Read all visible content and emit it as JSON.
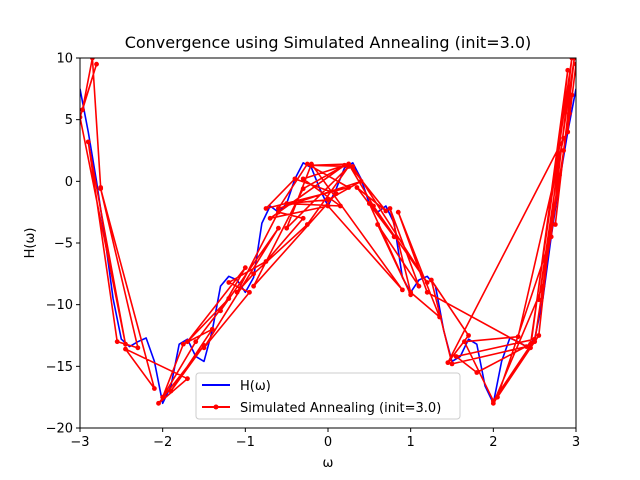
{
  "chart_data": {
    "type": "line",
    "title": "Convergence using Simulated Annealing (init=3.0)",
    "xlabel": "ω",
    "ylabel": "H(ω)",
    "xlim": [
      -3,
      3
    ],
    "ylim": [
      -20,
      10
    ],
    "x_ticks": [
      {
        "value": -3,
        "label": "−3"
      },
      {
        "value": -2,
        "label": "−2"
      },
      {
        "value": -1,
        "label": "−1"
      },
      {
        "value": 0,
        "label": "0"
      },
      {
        "value": 1,
        "label": "1"
      },
      {
        "value": 2,
        "label": "2"
      },
      {
        "value": 3,
        "label": "3"
      }
    ],
    "y_ticks": [
      {
        "value": -20,
        "label": "−20"
      },
      {
        "value": -15,
        "label": "−15"
      },
      {
        "value": -10,
        "label": "−10"
      },
      {
        "value": -5,
        "label": "−5"
      },
      {
        "value": 0,
        "label": "0"
      },
      {
        "value": 5,
        "label": "5"
      },
      {
        "value": 10,
        "label": "10"
      }
    ],
    "grid": false,
    "legend_position": "lower-center",
    "series": [
      {
        "name": "H(ω)",
        "color": "#0000ff",
        "marker": "none",
        "x": [
          -3.0,
          -2.9,
          -2.8,
          -2.7,
          -2.6,
          -2.5,
          -2.4,
          -2.3,
          -2.2,
          -2.1,
          -2.0,
          -1.9,
          -1.8,
          -1.7,
          -1.6,
          -1.5,
          -1.4,
          -1.3,
          -1.2,
          -1.1,
          -1.0,
          -0.9,
          -0.8,
          -0.7,
          -0.6,
          -0.5,
          -0.4,
          -0.3,
          -0.2,
          -0.1,
          0.0,
          0.1,
          0.2,
          0.3,
          0.4,
          0.5,
          0.6,
          0.7,
          0.8,
          0.9,
          1.0,
          1.1,
          1.2,
          1.3,
          1.4,
          1.5,
          1.6,
          1.7,
          1.8,
          1.9,
          2.0,
          2.1,
          2.2,
          2.3,
          2.4,
          2.5,
          2.6,
          2.7,
          2.8,
          2.9,
          3.0
        ],
        "y": [
          7.5,
          4.0,
          0.0,
          -4.5,
          -9.5,
          -12.8,
          -13.4,
          -13.0,
          -12.7,
          -14.6,
          -18.0,
          -16.6,
          -13.2,
          -12.8,
          -14.2,
          -14.6,
          -12.1,
          -8.5,
          -7.7,
          -8.0,
          -9.0,
          -7.8,
          -3.4,
          -2.0,
          -2.5,
          -1.8,
          0.2,
          1.5,
          1.1,
          -0.6,
          -2.0,
          -0.6,
          1.1,
          1.5,
          0.2,
          -1.8,
          -2.5,
          -2.0,
          -3.4,
          -7.8,
          -9.0,
          -8.0,
          -7.7,
          -8.5,
          -12.1,
          -14.6,
          -14.2,
          -12.8,
          -13.2,
          -16.6,
          -18.0,
          -14.6,
          -12.7,
          -13.0,
          -13.4,
          -12.8,
          -9.5,
          -4.5,
          0.0,
          4.0,
          7.5
        ]
      },
      {
        "name": "Simulated Annealing (init=3.0)",
        "color": "#ff0000",
        "marker": "circle",
        "x": [
          3.0,
          2.9,
          2.95,
          2.85,
          2.75,
          2.98,
          2.55,
          2.8,
          2.5,
          2.92,
          2.6,
          2.0,
          2.45,
          2.9,
          2.55,
          2.05,
          2.7,
          2.95,
          2.45,
          1.8,
          1.55,
          2.5,
          2.0,
          1.65,
          2.3,
          2.85,
          1.45,
          1.7,
          1.25,
          1.5,
          2.4,
          1.2,
          0.85,
          1.35,
          1.0,
          0.75,
          1.1,
          0.6,
          1.0,
          0.5,
          0.8,
          0.35,
          0.7,
          0.25,
          0.55,
          1.2,
          0.3,
          -0.2,
          0.25,
          -0.3,
          0.15,
          -0.5,
          0.0,
          0.4,
          -0.6,
          -0.25,
          0.25,
          -0.75,
          -0.4,
          0.1,
          -0.9,
          -0.3,
          0.2,
          -0.7,
          0.0,
          0.9,
          -0.2,
          -0.5,
          0.25,
          -0.25,
          -0.9,
          -1.1,
          -0.6,
          -0.3,
          -0.75,
          -1.2,
          -0.95,
          -1.5,
          -0.6,
          -1.3,
          -1.0,
          -1.7,
          -1.2,
          -1.6,
          -2.0,
          -1.75,
          -1.4,
          -1.9,
          -1.5,
          -2.05,
          -1.7,
          -2.45,
          -2.1,
          -2.75,
          -2.3,
          -2.55,
          -2.9,
          -2.45,
          -3.0,
          -2.8,
          -2.97,
          -2.85,
          -2.75
        ],
        "y": [
          9.5,
          4.0,
          7.0,
          2.5,
          -3.5,
          10.0,
          -9.6,
          0.5,
          -13.0,
          5.5,
          -8.5,
          -18.0,
          -13.5,
          9.0,
          -12.5,
          -17.5,
          -4.5,
          10.0,
          -13.2,
          -15.5,
          -14.2,
          -12.8,
          -17.8,
          -13.0,
          -12.6,
          3.5,
          -14.7,
          -12.5,
          -8.0,
          -14.8,
          -13.4,
          -9.0,
          -2.5,
          -11.0,
          -9.0,
          -2.2,
          -8.5,
          -3.5,
          -9.2,
          -1.8,
          -4.5,
          -0.5,
          -2.4,
          1.4,
          -2.0,
          -8.2,
          1.2,
          1.3,
          1.4,
          0.2,
          -2.0,
          -1.8,
          -1.5,
          0.0,
          -2.2,
          1.4,
          -0.5,
          -2.2,
          0.2,
          -1.0,
          -8.5,
          -0.6,
          1.3,
          -3.0,
          -2.0,
          -8.8,
          1.4,
          -3.8,
          1.2,
          -3.5,
          -7.5,
          -9.0,
          -2.5,
          -3.0,
          -6.5,
          -8.2,
          -9.0,
          -13.5,
          -3.8,
          -10.5,
          -7.0,
          -13.0,
          -9.5,
          -13.0,
          -17.5,
          -13.2,
          -12.0,
          -17.0,
          -13.3,
          -18.0,
          -16.0,
          -13.6,
          -16.8,
          -0.6,
          -13.5,
          -13.0,
          3.2,
          -13.2,
          5.2,
          9.5,
          5.8,
          10.0,
          -0.5
        ]
      }
    ]
  }
}
